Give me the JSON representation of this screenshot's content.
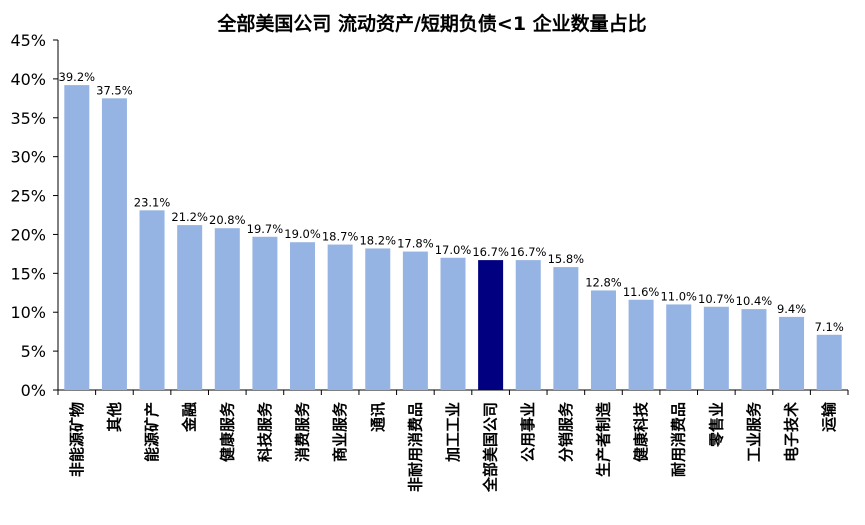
{
  "chart_data": {
    "type": "bar",
    "title": "全部美国公司 流动资产/短期负债<1 企业数量占比",
    "xlabel": "",
    "ylabel": "",
    "ylim": [
      0,
      45
    ],
    "yticks": [
      "0%",
      "5%",
      "10%",
      "15%",
      "20%",
      "25%",
      "30%",
      "35%",
      "40%",
      "45%"
    ],
    "categories": [
      "非能源矿物",
      "其他",
      "能源矿产",
      "金融",
      "健康服务",
      "科技服务",
      "消费服务",
      "商业服务",
      "通讯",
      "非耐用消费品",
      "加工工业",
      "全部美国公司",
      "公用事业",
      "分销服务",
      "生产者制造",
      "健康科技",
      "耐用消费品",
      "零售业",
      "工业服务",
      "电子技术",
      "运输"
    ],
    "values": [
      39.2,
      37.5,
      23.1,
      21.2,
      20.8,
      19.7,
      19.0,
      18.7,
      18.2,
      17.8,
      17.0,
      16.7,
      16.7,
      15.8,
      12.8,
      11.6,
      11.0,
      10.7,
      10.4,
      9.4,
      7.1
    ],
    "value_labels": [
      "39.2%",
      "37.5%",
      "23.1%",
      "21.2%",
      "20.8%",
      "19.7%",
      "19.0%",
      "18.7%",
      "18.2%",
      "17.8%",
      "17.0%",
      "16.7%",
      "16.7%",
      "15.8%",
      "12.8%",
      "11.6%",
      "11.0%",
      "10.7%",
      "10.4%",
      "9.4%",
      "7.1%"
    ],
    "highlight_category": "全部美国公司",
    "grid": false,
    "legend": "none",
    "colors": {
      "bar": "#95B3E3",
      "highlight": "#000080",
      "axis": "#000000"
    }
  }
}
